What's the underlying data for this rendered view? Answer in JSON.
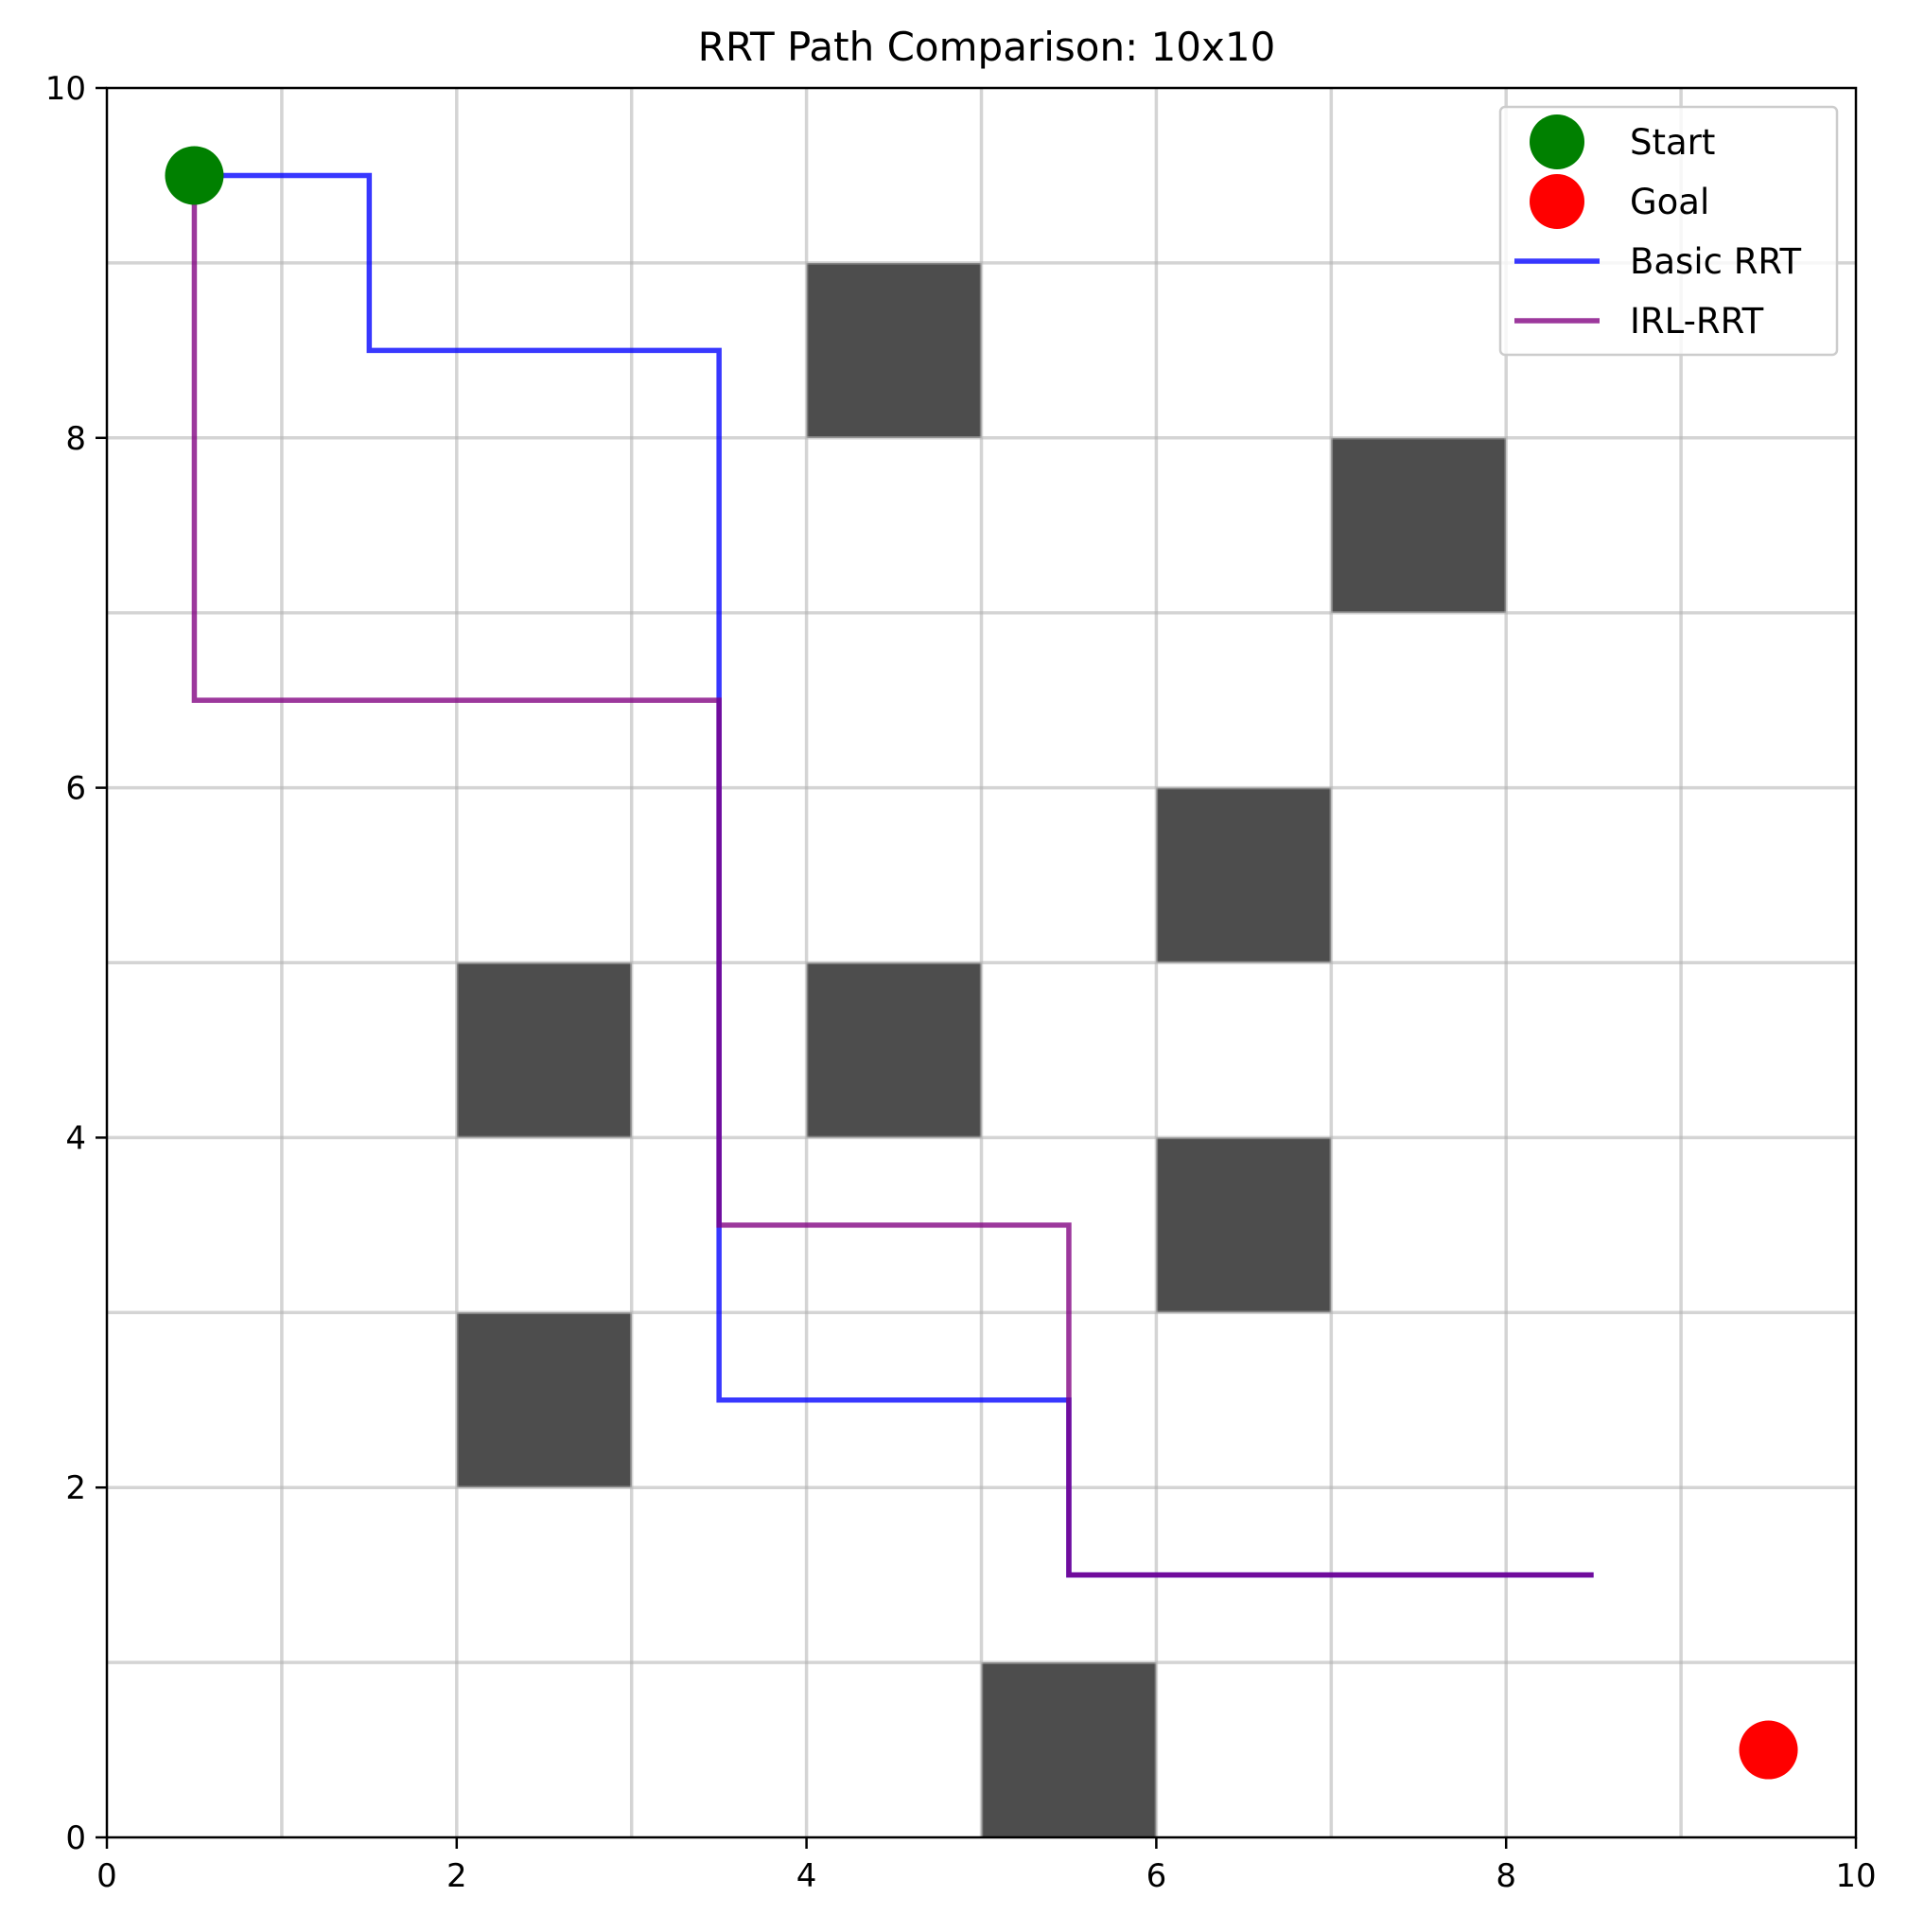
{
  "chart_data": {
    "type": "line",
    "title": "RRT Path Comparison: 10x10",
    "xlabel": "",
    "ylabel": "",
    "xlim": [
      0,
      10
    ],
    "ylim": [
      0,
      10
    ],
    "xticks": [
      0,
      2,
      4,
      6,
      8,
      10
    ],
    "yticks": [
      0,
      2,
      4,
      6,
      8,
      10
    ],
    "xtick_labels": [
      "0",
      "2",
      "4",
      "6",
      "8",
      "10"
    ],
    "ytick_labels": [
      "0",
      "2",
      "4",
      "6",
      "8",
      "10"
    ],
    "grid": true,
    "grid_lines": [
      1,
      2,
      3,
      4,
      5,
      6,
      7,
      8,
      9
    ],
    "legend_position": "top-right",
    "obstacles": [
      {
        "x": 4,
        "y": 8,
        "w": 1,
        "h": 1
      },
      {
        "x": 7,
        "y": 7,
        "w": 1,
        "h": 1
      },
      {
        "x": 6,
        "y": 5,
        "w": 1,
        "h": 1
      },
      {
        "x": 2,
        "y": 4,
        "w": 1,
        "h": 1
      },
      {
        "x": 4,
        "y": 4,
        "w": 1,
        "h": 1
      },
      {
        "x": 6,
        "y": 3,
        "w": 1,
        "h": 1
      },
      {
        "x": 2,
        "y": 2,
        "w": 1,
        "h": 1
      },
      {
        "x": 5,
        "y": 0,
        "w": 1,
        "h": 1
      }
    ],
    "obstacle_color": "#4d4d4d",
    "markers": [
      {
        "name": "Start",
        "x": 0.5,
        "y": 9.5,
        "color": "#008000"
      },
      {
        "name": "Goal",
        "x": 9.5,
        "y": 0.5,
        "color": "#ff0000"
      }
    ],
    "series": [
      {
        "name": "Basic RRT",
        "color": "#0000ff",
        "points": [
          [
            0.5,
            9.5
          ],
          [
            1.5,
            9.5
          ],
          [
            1.5,
            8.5
          ],
          [
            3.5,
            8.5
          ],
          [
            3.5,
            2.5
          ],
          [
            5.5,
            2.5
          ],
          [
            5.5,
            1.5
          ],
          [
            8.5,
            1.5
          ]
        ]
      },
      {
        "name": "IRL-RRT",
        "color": "#800080",
        "points": [
          [
            0.5,
            9.5
          ],
          [
            0.5,
            6.5
          ],
          [
            3.5,
            6.5
          ],
          [
            3.5,
            3.5
          ],
          [
            5.5,
            3.5
          ],
          [
            5.5,
            1.5
          ],
          [
            8.5,
            1.5
          ]
        ]
      }
    ],
    "legend": [
      "Start",
      "Goal",
      "Basic RRT",
      "IRL-RRT"
    ]
  }
}
